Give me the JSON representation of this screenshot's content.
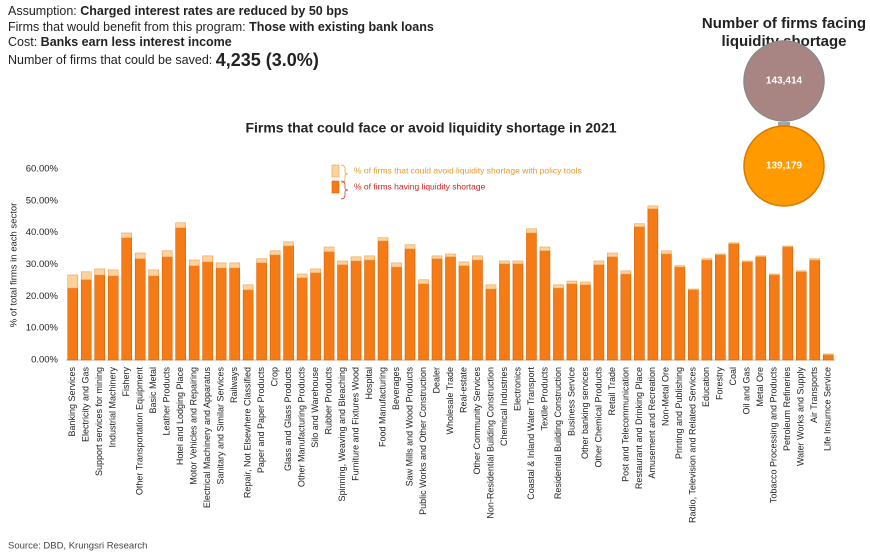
{
  "header": {
    "assumption_label": "Assumption:",
    "assumption": "Charged interest rates are reduced by 50 bps",
    "beneficiaries_label": "Firms that would benefit from this program:",
    "beneficiaries": "Those with existing bank loans",
    "cost_label": "Cost:",
    "cost": "Banks earn less interest income",
    "saved_label": "Number of firms that could be saved:",
    "saved": "4,235 (3.0%)"
  },
  "diagram": {
    "title_lines": [
      "Number of firms facing",
      "liquidity shortage"
    ],
    "before": "143,414",
    "after": "139,179"
  },
  "chart_data": {
    "type": "stacked-bar",
    "title": "Firms that could face or avoid liquidity shortage in 2021",
    "y_label": "% of total firms in each sector",
    "categories": [
      "Banking Services",
      "Electricity and Gas",
      "Support services for mining",
      "Industrial Machinery",
      "Fishery",
      "Other Transportation Equipment",
      "Basic Metal",
      "Leather Products",
      "Hotel and Lodging Place",
      "Motor Vehicles and Repairing",
      "Electrical Machinery and Apparatus",
      "Sanitary and Similar Services",
      "Railways",
      "Repair, Not Elsewhere Classified",
      "Paper and Paper Products",
      "Crop",
      "Glass and Glass Products",
      "Other Manufacturing Products",
      "Silo and Warehouse",
      "Rubber Products",
      "Spinning, Weaving and Bleaching",
      "Furniture and Fixtures Wood",
      "Hospital",
      "Food Manufacturing",
      "Beverages",
      "Saw Mills and Wood Products",
      "Public Works and Other Construction",
      "Dealer",
      "Wholesale Trade",
      "Real-estate",
      "Other Community Services",
      "Non-Residential Building Construction",
      "Chemical Industries",
      "Electronics",
      "Coastal & Inland Water Transport",
      "Textile Products",
      "Residential Building Construction",
      "Business Service",
      "Other banking services",
      "Other Chemical Products",
      "Retail Trade",
      "Post and Telecommunication",
      "Restaurant and Drinking Place",
      "Amusement and Recreation",
      "Non-Metal Ore",
      "Printing and Publishing",
      "Radio, Television and Related Services",
      "Education",
      "Forestry",
      "Coal",
      "Oil and Gas",
      "Metal Ore",
      "Tobacco Processing and Products",
      "Petroleum Refineries",
      "Water Works and Supply",
      "Air Transports",
      "Life Insurnce Service"
    ],
    "series": [
      {
        "name": "% of firms having liquidity shortage",
        "color": "#f47b16",
        "values": [
          22.6,
          25.2,
          26.7,
          26.4,
          38.4,
          31.8,
          26.4,
          32.4,
          41.5,
          29.6,
          30.8,
          28.9,
          28.9,
          22.0,
          30.5,
          33.0,
          35.8,
          25.8,
          27.4,
          34.0,
          29.9,
          31.1,
          31.4,
          37.4,
          29.2,
          34.9,
          23.9,
          31.8,
          32.4,
          29.6,
          31.4,
          22.3,
          30.2,
          30.2,
          39.9,
          34.3,
          22.6,
          23.9,
          23.6,
          29.9,
          32.4,
          27.0,
          41.8,
          47.5,
          33.3,
          29.2,
          22.0,
          31.4,
          33.0,
          36.5,
          30.8,
          32.4,
          26.7,
          35.5,
          27.7,
          31.4,
          1.6
        ]
      },
      {
        "name": "% of firms that could avoid liquidity shortage with policy tools",
        "color": "#fcd3a0",
        "values": [
          4.1,
          2.5,
          1.9,
          1.9,
          1.5,
          1.8,
          1.9,
          1.9,
          1.6,
          1.8,
          1.9,
          1.6,
          1.6,
          1.6,
          1.3,
          1.3,
          1.3,
          1.2,
          1.2,
          1.5,
          1.2,
          1.3,
          1.3,
          1.0,
          1.3,
          1.3,
          1.3,
          0.9,
          0.9,
          1.2,
          1.3,
          1.3,
          0.9,
          0.9,
          1.3,
          1.2,
          1.0,
          0.9,
          0.9,
          1.2,
          1.2,
          1.0,
          1.0,
          0.9,
          1.0,
          0.4,
          0.3,
          0.4,
          0.3,
          0.3,
          0.3,
          0.3,
          0.3,
          0.3,
          0.3,
          0.4,
          0.3
        ]
      }
    ],
    "ylim": [
      0,
      60
    ],
    "yticks": [
      {
        "value": 0,
        "label": "0.00%"
      },
      {
        "value": 10,
        "label": "10.00%"
      },
      {
        "value": 20,
        "label": "20.00%"
      },
      {
        "value": 30,
        "label": "30.00%"
      },
      {
        "value": 40,
        "label": "40.00%"
      },
      {
        "value": 50,
        "label": "50.00%"
      },
      {
        "value": 60,
        "label": "60.00%"
      }
    ],
    "grid": false,
    "legend": "top"
  },
  "source": "Source: DBD, Krungsri Research"
}
